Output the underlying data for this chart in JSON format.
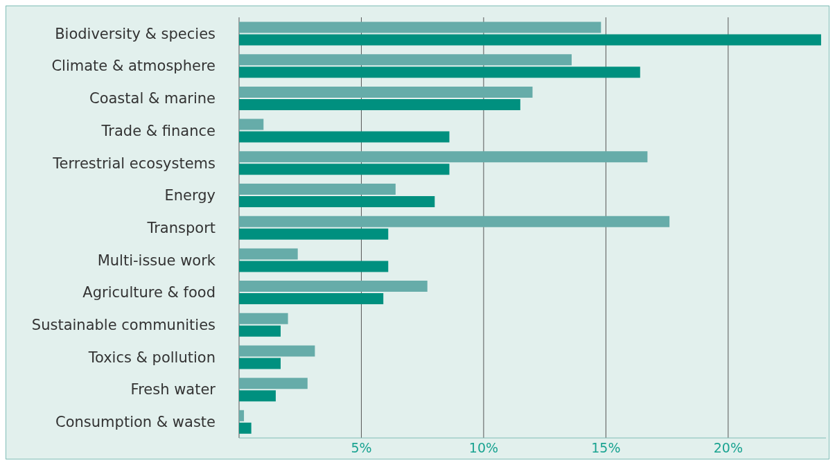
{
  "chart_data": {
    "type": "bar",
    "orientation": "horizontal",
    "categories": [
      "Biodiversity & species",
      "Climate & atmosphere",
      "Coastal & marine",
      "Trade & finance",
      "Terrestrial ecosystems",
      "Energy",
      "Transport",
      "Multi-issue work",
      "Agriculture & food",
      "Sustainable communities",
      "Toxics & pollution",
      "Fresh water",
      "Consumption & waste"
    ],
    "series": [
      {
        "color": "#66aca9",
        "values": [
          14.8,
          13.6,
          12.0,
          1.0,
          16.7,
          6.4,
          17.6,
          2.4,
          7.7,
          2.0,
          3.1,
          2.8,
          0.2
        ]
      },
      {
        "color": "#00907f",
        "values": [
          23.8,
          16.4,
          11.5,
          8.6,
          8.6,
          8.0,
          6.1,
          6.1,
          5.9,
          1.7,
          1.7,
          1.5,
          0.5
        ]
      }
    ],
    "xlim": [
      0,
      24
    ],
    "xticks": [
      {
        "value": 0,
        "label": null
      },
      {
        "value": 5,
        "label": "5%"
      },
      {
        "value": 10,
        "label": "10%"
      },
      {
        "value": 15,
        "label": "15%"
      },
      {
        "value": 20,
        "label": "20%"
      }
    ],
    "grid": "x",
    "legend": false
  }
}
